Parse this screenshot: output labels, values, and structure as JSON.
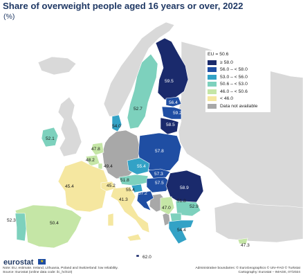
{
  "title": "Share of overweight people aged 16 years or over, 2022",
  "subtitle": "(%)",
  "colors": {
    "ge58": "#1a2a6c",
    "c56_58": "#1f4ea3",
    "c53_56": "#33a2c6",
    "c506_53": "#7dd1bd",
    "c46_506": "#c5e6a6",
    "lt46": "#f5e7a0",
    "na": "#a8a8a8",
    "non_eu": "#d9d9d9",
    "sea": "#ffffff"
  },
  "legend": {
    "title": "EU = 50.6",
    "items": [
      {
        "label": "≥ 58.0",
        "color": "#1a2a6c"
      },
      {
        "label": "56.0 – < 58.0",
        "color": "#1f4ea3"
      },
      {
        "label": "53.0 – < 56.0",
        "color": "#33a2c6"
      },
      {
        "label": "50.6 – < 53.0",
        "color": "#7dd1bd"
      },
      {
        "label": "46.0 – < 50.6",
        "color": "#c5e6a6"
      },
      {
        "label": "< 46.0",
        "color": "#f5e7a0"
      },
      {
        "label": "Data not available",
        "color": "#a8a8a8"
      }
    ]
  },
  "map_values": {
    "finland": "59.5",
    "sweden": "52.7",
    "estonia": "56.4",
    "latvia": "59.2",
    "lithuania": "58.5",
    "denmark": "54.0",
    "ireland": "52.1",
    "netherlands": "47.8",
    "belgium": "48.2",
    "luxembourg": "49.4",
    "poland": "57.8",
    "czechia": "55.4",
    "slovakia": "57.3",
    "austria": "51.8",
    "hungary": "57.5",
    "slovenia": "55.4",
    "croatia": "57.2",
    "romania": "58.9",
    "bulgaria": "51.8",
    "serbia": "47.0",
    "north_macedonia": "52.9",
    "greece": "54.4",
    "cyprus": "47.3",
    "france": "45.4",
    "switzerland": "45.2",
    "italy": "41.3",
    "spain": "50.4",
    "portugal": "52.3",
    "malta": "62.0"
  },
  "footer": {
    "logo": "eurostat",
    "note_line1": "Note: EU, estimate. Ireland, Lithuania, Poland and Switzerland: low reliability.",
    "note_line2": "Source: Eurostat (online data code: ilc_hch10)",
    "credit_line1": "Administrative boundaries: © EuroGeographics © UN–FAO © Turkstat",
    "credit_line2": "Cartography: Eurostat – IMAGE, 07/2024"
  }
}
